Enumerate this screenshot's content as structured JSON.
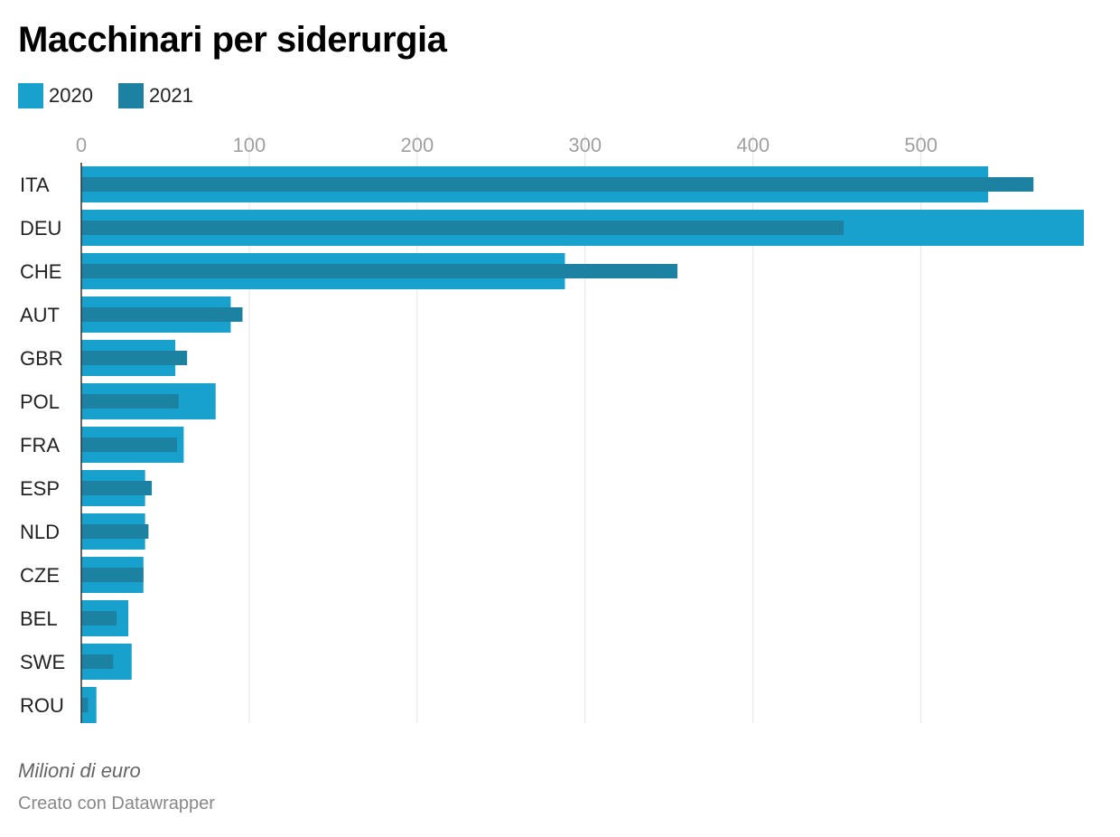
{
  "chart_data": {
    "type": "bar",
    "orientation": "horizontal",
    "title": "Macchinari per siderurgia",
    "notes": "Milioni di euro",
    "credit": "Creato con Datawrapper",
    "categories": [
      "ITA",
      "DEU",
      "CHE",
      "AUT",
      "GBR",
      "POL",
      "FRA",
      "ESP",
      "NLD",
      "CZE",
      "BEL",
      "SWE",
      "ROU"
    ],
    "series": [
      {
        "name": "2020",
        "color": "#18a1cd",
        "values": [
          540,
          597,
          288,
          89,
          56,
          80,
          61,
          38,
          38,
          37,
          28,
          30,
          9
        ]
      },
      {
        "name": "2021",
        "color": "#1d81a2",
        "values": [
          567,
          454,
          355,
          96,
          63,
          58,
          57,
          42,
          40,
          37,
          21,
          19,
          4
        ]
      }
    ],
    "xlim": [
      0,
      597
    ],
    "xticks": [
      0,
      100,
      200,
      300,
      400,
      500
    ],
    "grid": true,
    "legend_position": "top-left"
  }
}
